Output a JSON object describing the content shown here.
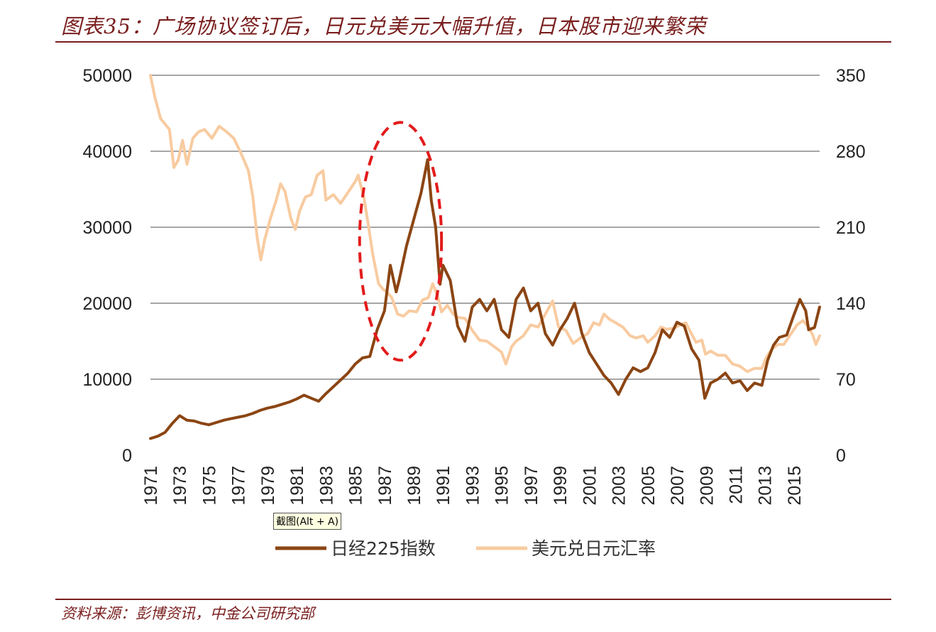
{
  "header": {
    "title": "图表35：广场协议签订后，日元兑美元大幅升值，日本股市迎来繁荣"
  },
  "footer": {
    "source": "资料来源：彭博资讯，中金公司研究部"
  },
  "tooltip": {
    "text": "截图(Alt + A)"
  },
  "colors": {
    "nikkei": "#8B4513",
    "fx": "#F8CBA0",
    "highlight": "#e31b1b",
    "grid": "#a6a6a6",
    "accent": "#7a1e1e"
  },
  "chart_data": {
    "type": "line",
    "title": "",
    "x_range": [
      1971,
      2016.75
    ],
    "x_tick_labels": [
      "1971",
      "1973",
      "1975",
      "1977",
      "1979",
      "1981",
      "1983",
      "1985",
      "1987",
      "1989",
      "1991",
      "1993",
      "1995",
      "1997",
      "1999",
      "2001",
      "2003",
      "2005",
      "2007",
      "2009",
      "2011",
      "2013",
      "2015"
    ],
    "y_left": {
      "range": [
        0,
        50000
      ],
      "ticks": [
        "0",
        "10000",
        "20000",
        "30000",
        "40000",
        "50000"
      ]
    },
    "y_right": {
      "range": [
        0,
        350
      ],
      "ticks": [
        "0",
        "70",
        "140",
        "210",
        "280",
        "350"
      ]
    },
    "grid": true,
    "legend_position": "bottom",
    "highlight": {
      "shape": "dashed-ellipse",
      "x_range": [
        1985.3,
        1990.9
      ],
      "y_range_left": [
        12500,
        43800
      ]
    },
    "series": [
      {
        "name": "日经225指数",
        "axis": "left",
        "points": [
          [
            1971.0,
            2200
          ],
          [
            1971.5,
            2500
          ],
          [
            1972.0,
            3000
          ],
          [
            1972.5,
            4200
          ],
          [
            1973.0,
            5200
          ],
          [
            1973.5,
            4600
          ],
          [
            1974.0,
            4500
          ],
          [
            1974.5,
            4200
          ],
          [
            1975.0,
            4000
          ],
          [
            1975.5,
            4300
          ],
          [
            1976.0,
            4600
          ],
          [
            1976.5,
            4800
          ],
          [
            1977.0,
            5000
          ],
          [
            1977.5,
            5200
          ],
          [
            1978.0,
            5500
          ],
          [
            1978.5,
            5900
          ],
          [
            1979.0,
            6200
          ],
          [
            1979.5,
            6400
          ],
          [
            1980.0,
            6700
          ],
          [
            1980.5,
            7000
          ],
          [
            1981.0,
            7400
          ],
          [
            1981.5,
            7900
          ],
          [
            1982.0,
            7500
          ],
          [
            1982.5,
            7100
          ],
          [
            1983.0,
            8100
          ],
          [
            1983.5,
            9000
          ],
          [
            1984.0,
            9900
          ],
          [
            1984.5,
            10800
          ],
          [
            1985.0,
            12000
          ],
          [
            1985.5,
            12800
          ],
          [
            1986.0,
            13000
          ],
          [
            1986.5,
            16500
          ],
          [
            1987.0,
            19000
          ],
          [
            1987.4,
            25000
          ],
          [
            1987.8,
            21500
          ],
          [
            1988.0,
            23000
          ],
          [
            1988.5,
            27500
          ],
          [
            1989.0,
            31000
          ],
          [
            1989.5,
            34500
          ],
          [
            1989.95,
            38900
          ],
          [
            1990.2,
            33500
          ],
          [
            1990.5,
            30000
          ],
          [
            1990.8,
            22500
          ],
          [
            1991.0,
            25000
          ],
          [
            1991.5,
            23000
          ],
          [
            1992.0,
            17000
          ],
          [
            1992.5,
            15000
          ],
          [
            1993.0,
            19500
          ],
          [
            1993.5,
            20500
          ],
          [
            1994.0,
            19000
          ],
          [
            1994.5,
            20500
          ],
          [
            1995.0,
            16500
          ],
          [
            1995.5,
            15500
          ],
          [
            1996.0,
            20500
          ],
          [
            1996.5,
            22000
          ],
          [
            1997.0,
            19000
          ],
          [
            1997.5,
            20000
          ],
          [
            1998.0,
            16000
          ],
          [
            1998.5,
            14500
          ],
          [
            1999.0,
            16500
          ],
          [
            1999.5,
            18000
          ],
          [
            2000.0,
            20000
          ],
          [
            2000.5,
            16000
          ],
          [
            2001.0,
            13500
          ],
          [
            2001.5,
            12000
          ],
          [
            2002.0,
            10500
          ],
          [
            2002.5,
            9500
          ],
          [
            2003.0,
            8000
          ],
          [
            2003.5,
            10000
          ],
          [
            2004.0,
            11500
          ],
          [
            2004.5,
            11000
          ],
          [
            2005.0,
            11500
          ],
          [
            2005.5,
            13500
          ],
          [
            2006.0,
            16500
          ],
          [
            2006.5,
            15500
          ],
          [
            2007.0,
            17500
          ],
          [
            2007.5,
            17000
          ],
          [
            2008.0,
            14000
          ],
          [
            2008.5,
            12500
          ],
          [
            2008.9,
            7500
          ],
          [
            2009.3,
            9500
          ],
          [
            2009.8,
            10000
          ],
          [
            2010.3,
            10800
          ],
          [
            2010.8,
            9500
          ],
          [
            2011.3,
            9800
          ],
          [
            2011.8,
            8500
          ],
          [
            2012.3,
            9500
          ],
          [
            2012.8,
            9200
          ],
          [
            2013.2,
            12500
          ],
          [
            2013.6,
            14500
          ],
          [
            2014.0,
            15500
          ],
          [
            2014.5,
            15800
          ],
          [
            2015.0,
            18500
          ],
          [
            2015.4,
            20500
          ],
          [
            2015.8,
            19000
          ],
          [
            2016.0,
            16500
          ],
          [
            2016.4,
            16800
          ],
          [
            2016.75,
            19500
          ]
        ]
      },
      {
        "name": "美元兑日元汇率",
        "axis": "right",
        "points": [
          [
            1971.0,
            350
          ],
          [
            1971.3,
            330
          ],
          [
            1971.7,
            310
          ],
          [
            1972.0,
            305
          ],
          [
            1972.3,
            300
          ],
          [
            1972.6,
            265
          ],
          [
            1972.9,
            272
          ],
          [
            1973.2,
            290
          ],
          [
            1973.5,
            268
          ],
          [
            1973.9,
            292
          ],
          [
            1974.3,
            298
          ],
          [
            1974.7,
            300
          ],
          [
            1975.2,
            292
          ],
          [
            1975.7,
            303
          ],
          [
            1976.2,
            298
          ],
          [
            1976.7,
            292
          ],
          [
            1977.2,
            278
          ],
          [
            1977.7,
            262
          ],
          [
            1978.0,
            238
          ],
          [
            1978.3,
            200
          ],
          [
            1978.55,
            180
          ],
          [
            1978.8,
            198
          ],
          [
            1979.2,
            218
          ],
          [
            1979.6,
            235
          ],
          [
            1979.9,
            250
          ],
          [
            1980.2,
            243
          ],
          [
            1980.6,
            218
          ],
          [
            1980.9,
            208
          ],
          [
            1981.2,
            225
          ],
          [
            1981.6,
            238
          ],
          [
            1982.0,
            240
          ],
          [
            1982.4,
            258
          ],
          [
            1982.8,
            262
          ],
          [
            1983.0,
            235
          ],
          [
            1983.5,
            240
          ],
          [
            1984.0,
            232
          ],
          [
            1984.5,
            242
          ],
          [
            1985.0,
            252
          ],
          [
            1985.2,
            258
          ],
          [
            1985.6,
            237
          ],
          [
            1985.9,
            212
          ],
          [
            1986.2,
            185
          ],
          [
            1986.6,
            158
          ],
          [
            1986.9,
            153
          ],
          [
            1987.2,
            150
          ],
          [
            1987.5,
            145
          ],
          [
            1987.9,
            130
          ],
          [
            1988.3,
            128
          ],
          [
            1988.7,
            133
          ],
          [
            1989.2,
            132
          ],
          [
            1989.6,
            143
          ],
          [
            1990.0,
            145
          ],
          [
            1990.3,
            158
          ],
          [
            1990.6,
            148
          ],
          [
            1990.9,
            132
          ],
          [
            1991.3,
            138
          ],
          [
            1991.7,
            130
          ],
          [
            1992.0,
            127
          ],
          [
            1992.5,
            126
          ],
          [
            1993.0,
            115
          ],
          [
            1993.5,
            106
          ],
          [
            1994.0,
            105
          ],
          [
            1994.5,
            100
          ],
          [
            1995.0,
            95
          ],
          [
            1995.3,
            84
          ],
          [
            1995.7,
            100
          ],
          [
            1996.0,
            105
          ],
          [
            1996.5,
            110
          ],
          [
            1997.0,
            120
          ],
          [
            1997.5,
            118
          ],
          [
            1998.0,
            130
          ],
          [
            1998.5,
            142
          ],
          [
            1998.9,
            118
          ],
          [
            1999.4,
            115
          ],
          [
            1999.9,
            103
          ],
          [
            2000.4,
            108
          ],
          [
            2000.9,
            112
          ],
          [
            2001.3,
            122
          ],
          [
            2001.7,
            120
          ],
          [
            2002.0,
            130
          ],
          [
            2002.4,
            125
          ],
          [
            2002.8,
            122
          ],
          [
            2003.3,
            118
          ],
          [
            2003.8,
            110
          ],
          [
            2004.2,
            108
          ],
          [
            2004.7,
            110
          ],
          [
            2005.0,
            104
          ],
          [
            2005.5,
            110
          ],
          [
            2005.9,
            118
          ],
          [
            2006.3,
            116
          ],
          [
            2006.8,
            117
          ],
          [
            2007.2,
            120
          ],
          [
            2007.6,
            122
          ],
          [
            2007.9,
            114
          ],
          [
            2008.3,
            104
          ],
          [
            2008.7,
            106
          ],
          [
            2008.95,
            93
          ],
          [
            2009.3,
            96
          ],
          [
            2009.8,
            92
          ],
          [
            2010.3,
            92
          ],
          [
            2010.8,
            84
          ],
          [
            2011.3,
            82
          ],
          [
            2011.8,
            77
          ],
          [
            2012.3,
            80
          ],
          [
            2012.8,
            80
          ],
          [
            2013.1,
            90
          ],
          [
            2013.5,
            98
          ],
          [
            2013.9,
            102
          ],
          [
            2014.3,
            102
          ],
          [
            2014.8,
            112
          ],
          [
            2015.2,
            120
          ],
          [
            2015.6,
            124
          ],
          [
            2016.0,
            118
          ],
          [
            2016.3,
            110
          ],
          [
            2016.5,
            102
          ],
          [
            2016.75,
            110
          ]
        ]
      }
    ]
  }
}
